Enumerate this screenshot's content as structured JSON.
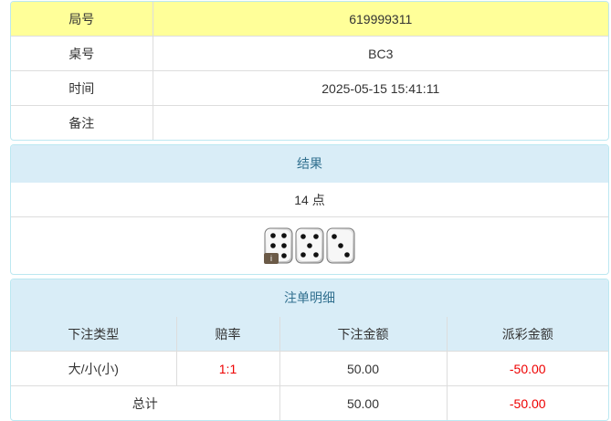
{
  "info": {
    "rows": [
      {
        "label": "局号",
        "value": "619999311"
      },
      {
        "label": "桌号",
        "value": "BC3"
      },
      {
        "label": "时间",
        "value": "2025-05-15 15:41:11"
      },
      {
        "label": "备注",
        "value": ""
      }
    ]
  },
  "result": {
    "title": "结果",
    "points": "14 点",
    "dice": [
      6,
      5,
      3
    ],
    "info_badge": "i"
  },
  "bets": {
    "title": "注单明细",
    "columns": [
      "下注类型",
      "赔率",
      "下注金额",
      "派彩金额"
    ],
    "rows": [
      {
        "type": "大/小(小)",
        "odds": "1:1",
        "amount": "50.00",
        "payout": "-50.00"
      }
    ],
    "total": {
      "label": "总计",
      "amount": "50.00",
      "payout": "-50.00"
    }
  },
  "colors": {
    "highlight": "#ffff99",
    "header": "#d9edf7",
    "negative": "#e00000"
  }
}
